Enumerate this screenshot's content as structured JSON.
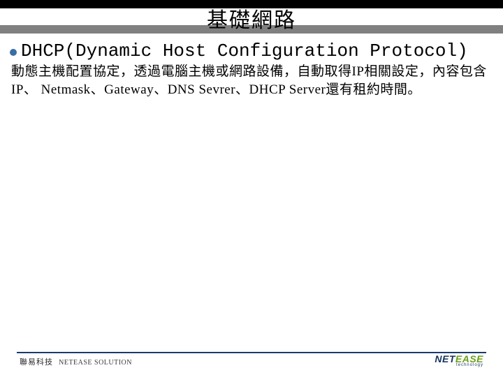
{
  "colors": {
    "title_bg_black": "#000000",
    "title_bg_gray": "#808080",
    "bullet": "#3a6ea5",
    "footer_line": "#1a3a6e",
    "logo_dark": "#16325c",
    "logo_green": "#6aa01a",
    "text": "#000000",
    "background": "#ffffff"
  },
  "title": "基礎網路",
  "heading": "DHCP(Dynamic Host Configuration Protocol)",
  "body": "動態主機配置協定，透過電腦主機或網路設備，自動取得IP相關設定，內容包含IP、 Netmask、Gateway、DNS Sevrer、DHCP Server還有租約時間。",
  "footer": {
    "company_zh": "聯易科技",
    "company_en": "NETEASE SOLUTION",
    "logo_a": "NET",
    "logo_b": "EASE",
    "logo_sub": "technology"
  },
  "fonts": {
    "title_size": 30,
    "heading_size": 26,
    "body_size": 19,
    "footer_size": 11
  }
}
